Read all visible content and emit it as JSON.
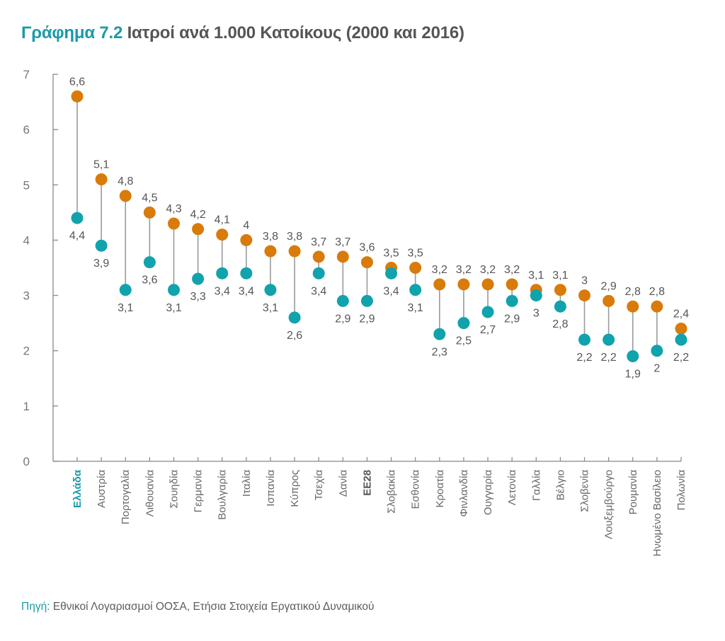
{
  "header": {
    "title_lead": "Γράφημα 7.2",
    "title_rest": "Ιατροί ανά 1.000 Κατοίκους (2000 και 2016)"
  },
  "footer": {
    "source_lead": "Πηγή:",
    "source_rest": "Εθνικοί Λογαριασμοί ΟΟΣΑ, Ετήσια Στοιχεία Εργατικού Δυναμικού"
  },
  "colors": {
    "series_2016": "#d97b0a",
    "series_2000": "#10a3ad",
    "connector": "#9a9a9a",
    "axis": "#888888",
    "highlight": "#1a9aa8"
  },
  "chart_data": {
    "type": "dumbbell",
    "title": "Γράφημα 7.2 Ιατροί ανά 1.000 Κατοίκους (2000 και 2016)",
    "xlabel": "",
    "ylabel": "",
    "ylim": [
      0,
      7
    ],
    "yticks": [
      0,
      1,
      2,
      3,
      4,
      5,
      6,
      7
    ],
    "grid": false,
    "legend": "none",
    "categories": [
      "Ελλάδα",
      "Αυστρία",
      "Πορτογαλία",
      "Λιθουανία",
      "Σουηδία",
      "Γερμανία",
      "Βουλγαρία",
      "Ιταλία",
      "Ισπανία",
      "Κύπρος",
      "Τσεχία",
      "Δανία",
      "ΕΕ28",
      "Σλοβακία",
      "Εσθονία",
      "Κροατία",
      "Φινλανδία",
      "Ουγγαρία",
      "Λετονία",
      "Γαλλία",
      "Βέλγιο",
      "Σλοβενία",
      "Λουξεμβούργο",
      "Ρουμανία",
      "Ηνωμένο Βασίλειο",
      "Πολωνία"
    ],
    "highlight": {
      "Ελλάδα": "greece",
      "ΕΕ28": "eu"
    },
    "series": [
      {
        "name": "2016",
        "color": "#d97b0a",
        "values": [
          6.6,
          5.1,
          4.8,
          4.5,
          4.3,
          4.2,
          4.1,
          4,
          3.8,
          3.8,
          3.7,
          3.7,
          3.6,
          3.5,
          3.5,
          3.2,
          3.2,
          3.2,
          3.2,
          3.1,
          3.1,
          3,
          2.9,
          2.8,
          2.8,
          2.4
        ],
        "labels": [
          "6,6",
          "5,1",
          "4,8",
          "4,5",
          "4,3",
          "4,2",
          "4,1",
          "4",
          "3,8",
          "3,8",
          "3,7",
          "3,7",
          "3,6",
          "3,5",
          "3,5",
          "3,2",
          "3,2",
          "3,2",
          "3,2",
          "3,1",
          "3,1",
          "3",
          "2,9",
          "2,8",
          "2,8",
          "2,4"
        ]
      },
      {
        "name": "2000",
        "color": "#10a3ad",
        "values": [
          4.4,
          3.9,
          3.1,
          3.6,
          3.1,
          3.3,
          3.4,
          3.4,
          3.1,
          2.6,
          3.4,
          2.9,
          2.9,
          3.4,
          3.1,
          2.3,
          2.5,
          2.7,
          2.9,
          3,
          2.8,
          2.2,
          2.2,
          1.9,
          2,
          2.2
        ],
        "labels": [
          "4,4",
          "3,9",
          "3,1",
          "3,6",
          "3,1",
          "3,3",
          "3,4",
          "3,4",
          "3,1",
          "2,6",
          "3,4",
          "2,9",
          "2,9",
          "3,4",
          "3,1",
          "2,3",
          "2,5",
          "2,7",
          "2,9",
          "3",
          "2,8",
          "2,2",
          "2,2",
          "1,9",
          "2",
          "2,2"
        ]
      }
    ]
  }
}
